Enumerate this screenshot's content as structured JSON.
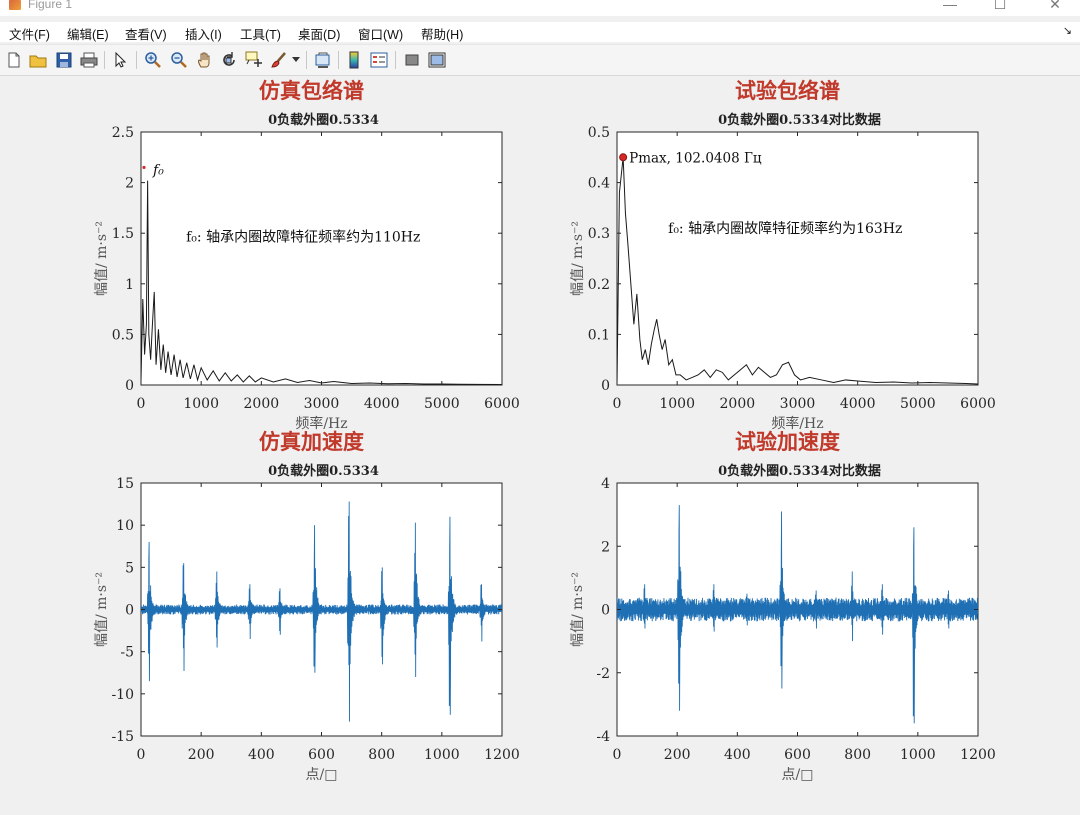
{
  "window": {
    "title": "Figure 1",
    "minimize": "—",
    "maximize": "☐",
    "close": "✕"
  },
  "menu": {
    "items": [
      "文件(F)",
      "编辑(E)",
      "查看(V)",
      "插入(I)",
      "工具(T)",
      "桌面(D)",
      "窗口(W)",
      "帮助(H)"
    ],
    "dock_arrow": "↘"
  },
  "toolbar": {
    "icons": [
      "new-figure-icon",
      "open-file-icon",
      "save-icon",
      "print-icon",
      "edit-plot-pointer-icon",
      "zoom-in-icon",
      "zoom-out-icon",
      "pan-hand-icon",
      "rotate-3d-icon",
      "data-cursor-icon",
      "brush-icon",
      "brush-dropdown-icon",
      "link-plot-icon",
      "insert-colorbar-icon",
      "insert-legend-icon",
      "hide-plot-tools-icon",
      "show-plot-tools-icon"
    ]
  },
  "colors": {
    "title_red": "#c0392b",
    "line_black": "#1a1a1a",
    "line_blue": "#1f6fb4",
    "marker_red": "#d62728"
  },
  "chart_data": [
    {
      "type": "line",
      "heading": "仿真包络谱",
      "subtitle": "0负载外圈0.5334",
      "xlabel": "频率/Hz",
      "ylabel": "幅值/ m·s⁻²",
      "xlim": [
        0,
        6000
      ],
      "ylim": [
        0,
        2.5
      ],
      "xticks": [
        0,
        1000,
        2000,
        3000,
        4000,
        5000,
        6000
      ],
      "yticks": [
        0,
        0.5,
        1,
        1.5,
        2,
        2.5
      ],
      "grid": false,
      "line_color": "#1a1a1a",
      "annotations": [
        {
          "text": "f₀",
          "x": 200,
          "y": 2.08
        },
        {
          "text": "f₀: 轴承内圈故障特征频率约为110Hz",
          "x": 750,
          "y": 1.42
        }
      ],
      "x": [
        0,
        30,
        60,
        90,
        110,
        130,
        160,
        190,
        220,
        250,
        290,
        330,
        370,
        410,
        450,
        500,
        550,
        600,
        650,
        700,
        760,
        820,
        880,
        940,
        1000,
        1100,
        1200,
        1300,
        1400,
        1500,
        1600,
        1700,
        1800,
        1900,
        2000,
        2200,
        2400,
        2600,
        2800,
        3000,
        3200,
        3500,
        3800,
        4100,
        4400,
        4700,
        5000,
        5300,
        5600,
        6000
      ],
      "y": [
        0.05,
        0.85,
        0.3,
        0.6,
        2.02,
        0.5,
        0.25,
        0.6,
        0.92,
        0.2,
        0.55,
        0.15,
        0.4,
        0.12,
        0.33,
        0.1,
        0.3,
        0.08,
        0.25,
        0.07,
        0.22,
        0.06,
        0.2,
        0.05,
        0.17,
        0.05,
        0.14,
        0.04,
        0.12,
        0.04,
        0.1,
        0.03,
        0.09,
        0.03,
        0.07,
        0.03,
        0.06,
        0.025,
        0.045,
        0.02,
        0.035,
        0.015,
        0.02,
        0.012,
        0.015,
        0.01,
        0.01,
        0.008,
        0.006,
        0.005
      ]
    },
    {
      "type": "line",
      "heading": "试验包络谱",
      "subtitle": "0负载外圈0.5334对比数据",
      "xlabel": "频率/Hz",
      "ylabel": "幅值/ m·s⁻²",
      "xlim": [
        0,
        6000
      ],
      "ylim": [
        0,
        0.5
      ],
      "xticks": [
        0,
        1000,
        2000,
        3000,
        4000,
        5000,
        6000
      ],
      "yticks": [
        0,
        0.1,
        0.2,
        0.3,
        0.4,
        0.5
      ],
      "grid": false,
      "line_color": "#1a1a1a",
      "datatip": {
        "text": "Pmax, 102.0408 Гц",
        "x": 102.0408,
        "y": 0.45
      },
      "annotations": [
        {
          "text": "f₀: 轴承内圈故障特征频率约为163Hz",
          "x": 850,
          "y": 0.3
        }
      ],
      "x": [
        0,
        40,
        102,
        140,
        180,
        230,
        280,
        330,
        380,
        420,
        470,
        520,
        570,
        620,
        660,
        700,
        750,
        800,
        860,
        920,
        980,
        1050,
        1150,
        1250,
        1350,
        1450,
        1550,
        1650,
        1750,
        1850,
        1950,
        2050,
        2150,
        2250,
        2350,
        2450,
        2550,
        2650,
        2750,
        2850,
        2950,
        3050,
        3200,
        3400,
        3600,
        3800,
        4000,
        4300,
        4600,
        4900,
        5200,
        5500,
        5800,
        6000
      ],
      "y": [
        0.0,
        0.38,
        0.45,
        0.34,
        0.28,
        0.2,
        0.12,
        0.18,
        0.09,
        0.05,
        0.07,
        0.04,
        0.08,
        0.11,
        0.13,
        0.1,
        0.07,
        0.09,
        0.04,
        0.05,
        0.02,
        0.02,
        0.01,
        0.015,
        0.02,
        0.03,
        0.015,
        0.03,
        0.025,
        0.01,
        0.02,
        0.03,
        0.04,
        0.02,
        0.035,
        0.025,
        0.015,
        0.02,
        0.04,
        0.045,
        0.02,
        0.01,
        0.015,
        0.01,
        0.005,
        0.01,
        0.008,
        0.005,
        0.006,
        0.004,
        0.005,
        0.004,
        0.003,
        0.002
      ]
    },
    {
      "type": "line",
      "heading": "仿真加速度",
      "subtitle": "0负载外圈0.5334",
      "xlabel": "点/□",
      "ylabel": "幅值/ m·s⁻²",
      "xlim": [
        0,
        1200
      ],
      "ylim": [
        -15,
        15
      ],
      "xticks": [
        0,
        200,
        400,
        600,
        800,
        1000,
        1200
      ],
      "yticks": [
        -15,
        -10,
        -5,
        0,
        5,
        10,
        15
      ],
      "grid": false,
      "line_color": "#1f6fb4",
      "bursts": [
        {
          "x": 25,
          "pos": 8.0,
          "neg": -8.5
        },
        {
          "x": 140,
          "pos": 5.5,
          "neg": -7.3
        },
        {
          "x": 250,
          "pos": 4.5,
          "neg": -4.5
        },
        {
          "x": 360,
          "pos": 3.0,
          "neg": -3.5
        },
        {
          "x": 460,
          "pos": 2.5,
          "neg": -3.0
        },
        {
          "x": 575,
          "pos": 10.0,
          "neg": -7.5
        },
        {
          "x": 690,
          "pos": 12.8,
          "neg": -13.3
        },
        {
          "x": 800,
          "pos": 5.0,
          "neg": -6.5
        },
        {
          "x": 910,
          "pos": 10.3,
          "neg": -8.0
        },
        {
          "x": 1025,
          "pos": 11.0,
          "neg": -12.5
        },
        {
          "x": 1130,
          "pos": 3.0,
          "neg": -3.8
        }
      ],
      "noise": 0.4
    },
    {
      "type": "line",
      "heading": "试验加速度",
      "subtitle": "0负载外圈0.5334对比数据",
      "xlabel": "点/□",
      "ylabel": "幅值/ m·s⁻²",
      "xlim": [
        0,
        1200
      ],
      "ylim": [
        -4,
        4
      ],
      "xticks": [
        0,
        200,
        400,
        600,
        800,
        1000,
        1200
      ],
      "yticks": [
        -4,
        -2,
        0,
        2,
        4
      ],
      "grid": false,
      "line_color": "#1f6fb4",
      "bursts": [
        {
          "x": 90,
          "pos": 0.8,
          "neg": -0.6
        },
        {
          "x": 205,
          "pos": 3.3,
          "neg": -3.2
        },
        {
          "x": 320,
          "pos": 0.8,
          "neg": -0.7
        },
        {
          "x": 430,
          "pos": 0.5,
          "neg": -0.5
        },
        {
          "x": 545,
          "pos": 3.1,
          "neg": -2.5
        },
        {
          "x": 660,
          "pos": 0.6,
          "neg": -0.6
        },
        {
          "x": 780,
          "pos": 1.2,
          "neg": -1.0
        },
        {
          "x": 880,
          "pos": 0.8,
          "neg": -0.8
        },
        {
          "x": 985,
          "pos": 2.6,
          "neg": -3.6
        },
        {
          "x": 1100,
          "pos": 0.6,
          "neg": -0.6
        }
      ],
      "noise": 0.25
    }
  ]
}
